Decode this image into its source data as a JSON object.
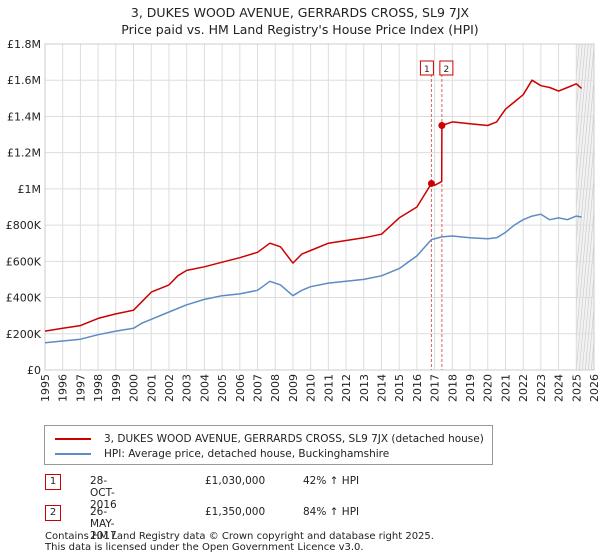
{
  "chart_data": {
    "type": "line",
    "title": "3, DUKES WOOD AVENUE, GERRARDS CROSS, SL9 7JX",
    "subtitle": "Price paid vs. HM Land Registry's House Price Index (HPI)",
    "xlim": [
      1995,
      2026
    ],
    "ylim": [
      0,
      1800000
    ],
    "x_ticks": [
      "1995",
      "1996",
      "1997",
      "1998",
      "1999",
      "2000",
      "2001",
      "2002",
      "2003",
      "2004",
      "2005",
      "2006",
      "2007",
      "2008",
      "2009",
      "2010",
      "2011",
      "2012",
      "2013",
      "2014",
      "2015",
      "2016",
      "2017",
      "2018",
      "2019",
      "2020",
      "2021",
      "2022",
      "2023",
      "2024",
      "2025",
      "2026"
    ],
    "y_ticks": [
      {
        "value": 0,
        "label": "£0"
      },
      {
        "value": 200000,
        "label": "£200K"
      },
      {
        "value": 400000,
        "label": "£400K"
      },
      {
        "value": 600000,
        "label": "£600K"
      },
      {
        "value": 800000,
        "label": "£800K"
      },
      {
        "value": 1000000,
        "label": "£1M"
      },
      {
        "value": 1200000,
        "label": "£1.2M"
      },
      {
        "value": 1400000,
        "label": "£1.4M"
      },
      {
        "value": 1600000,
        "label": "£1.6M"
      },
      {
        "value": 1800000,
        "label": "£1.8M"
      }
    ],
    "grid": true,
    "series": [
      {
        "name": "3, DUKES WOOD AVENUE, GERRARDS CROSS, SL9 7JX (detached house)",
        "color": "#cc0000",
        "x": [
          1995.0,
          1996.0,
          1997.0,
          1998.0,
          1999.0,
          2000.0,
          2000.5,
          2001.0,
          2002.0,
          2002.5,
          2003.0,
          2004.0,
          2005.0,
          2006.0,
          2007.0,
          2007.7,
          2008.3,
          2009.0,
          2009.5,
          2010.0,
          2011.0,
          2012.0,
          2013.0,
          2014.0,
          2015.0,
          2016.0,
          2016.82,
          2017.0,
          2017.4,
          2017.41,
          2018.0,
          2019.0,
          2020.0,
          2020.5,
          2021.0,
          2021.5,
          2022.0,
          2022.5,
          2023.0,
          2023.5,
          2024.0,
          2024.5,
          2025.0,
          2025.3
        ],
        "y": [
          215000,
          230000,
          245000,
          285000,
          310000,
          330000,
          380000,
          430000,
          470000,
          520000,
          550000,
          570000,
          595000,
          620000,
          650000,
          700000,
          680000,
          590000,
          640000,
          660000,
          700000,
          715000,
          730000,
          750000,
          840000,
          900000,
          1030000,
          1020000,
          1040000,
          1350000,
          1370000,
          1360000,
          1350000,
          1370000,
          1440000,
          1480000,
          1520000,
          1600000,
          1570000,
          1560000,
          1540000,
          1560000,
          1580000,
          1555000
        ]
      },
      {
        "name": "HPI: Average price, detached house, Buckinghamshire",
        "color": "#5b8cc4",
        "x": [
          1995.0,
          1996.0,
          1997.0,
          1998.0,
          1999.0,
          2000.0,
          2000.5,
          2001.0,
          2002.0,
          2003.0,
          2004.0,
          2005.0,
          2006.0,
          2007.0,
          2007.7,
          2008.3,
          2009.0,
          2009.5,
          2010.0,
          2011.0,
          2012.0,
          2013.0,
          2014.0,
          2015.0,
          2016.0,
          2016.82,
          2017.4,
          2018.0,
          2019.0,
          2020.0,
          2020.5,
          2021.0,
          2021.5,
          2022.0,
          2022.5,
          2023.0,
          2023.5,
          2024.0,
          2024.5,
          2025.0,
          2025.3
        ],
        "y": [
          150000,
          160000,
          170000,
          195000,
          215000,
          230000,
          260000,
          280000,
          320000,
          360000,
          390000,
          410000,
          420000,
          440000,
          490000,
          470000,
          410000,
          440000,
          460000,
          480000,
          490000,
          500000,
          520000,
          560000,
          630000,
          720000,
          735000,
          740000,
          730000,
          725000,
          730000,
          760000,
          800000,
          830000,
          850000,
          860000,
          830000,
          840000,
          830000,
          850000,
          845000
        ]
      }
    ],
    "transactions": [
      {
        "marker": "1",
        "x": 2016.82,
        "y": 1030000
      },
      {
        "marker": "2",
        "x": 2017.41,
        "y": 1350000
      }
    ],
    "forecast_start": 2025.0
  },
  "legend": {
    "property_label": "3, DUKES WOOD AVENUE, GERRARDS CROSS, SL9 7JX (detached house)",
    "hpi_label": "HPI: Average price, detached house, Buckinghamshire"
  },
  "transactions_table": [
    {
      "num": "1",
      "date": "28-OCT-2016",
      "price": "£1,030,000",
      "hpi": "42% ↑ HPI"
    },
    {
      "num": "2",
      "date": "26-MAY-2017",
      "price": "£1,350,000",
      "hpi": "84% ↑ HPI"
    }
  ],
  "footer": {
    "line1": "Contains HM Land Registry data © Crown copyright and database right 2025.",
    "line2": "This data is licensed under the Open Government Licence v3.0."
  },
  "colors": {
    "property": "#cc0000",
    "hpi": "#5b8cc4",
    "grid": "#dddddd",
    "marker_line": "#e06060"
  }
}
